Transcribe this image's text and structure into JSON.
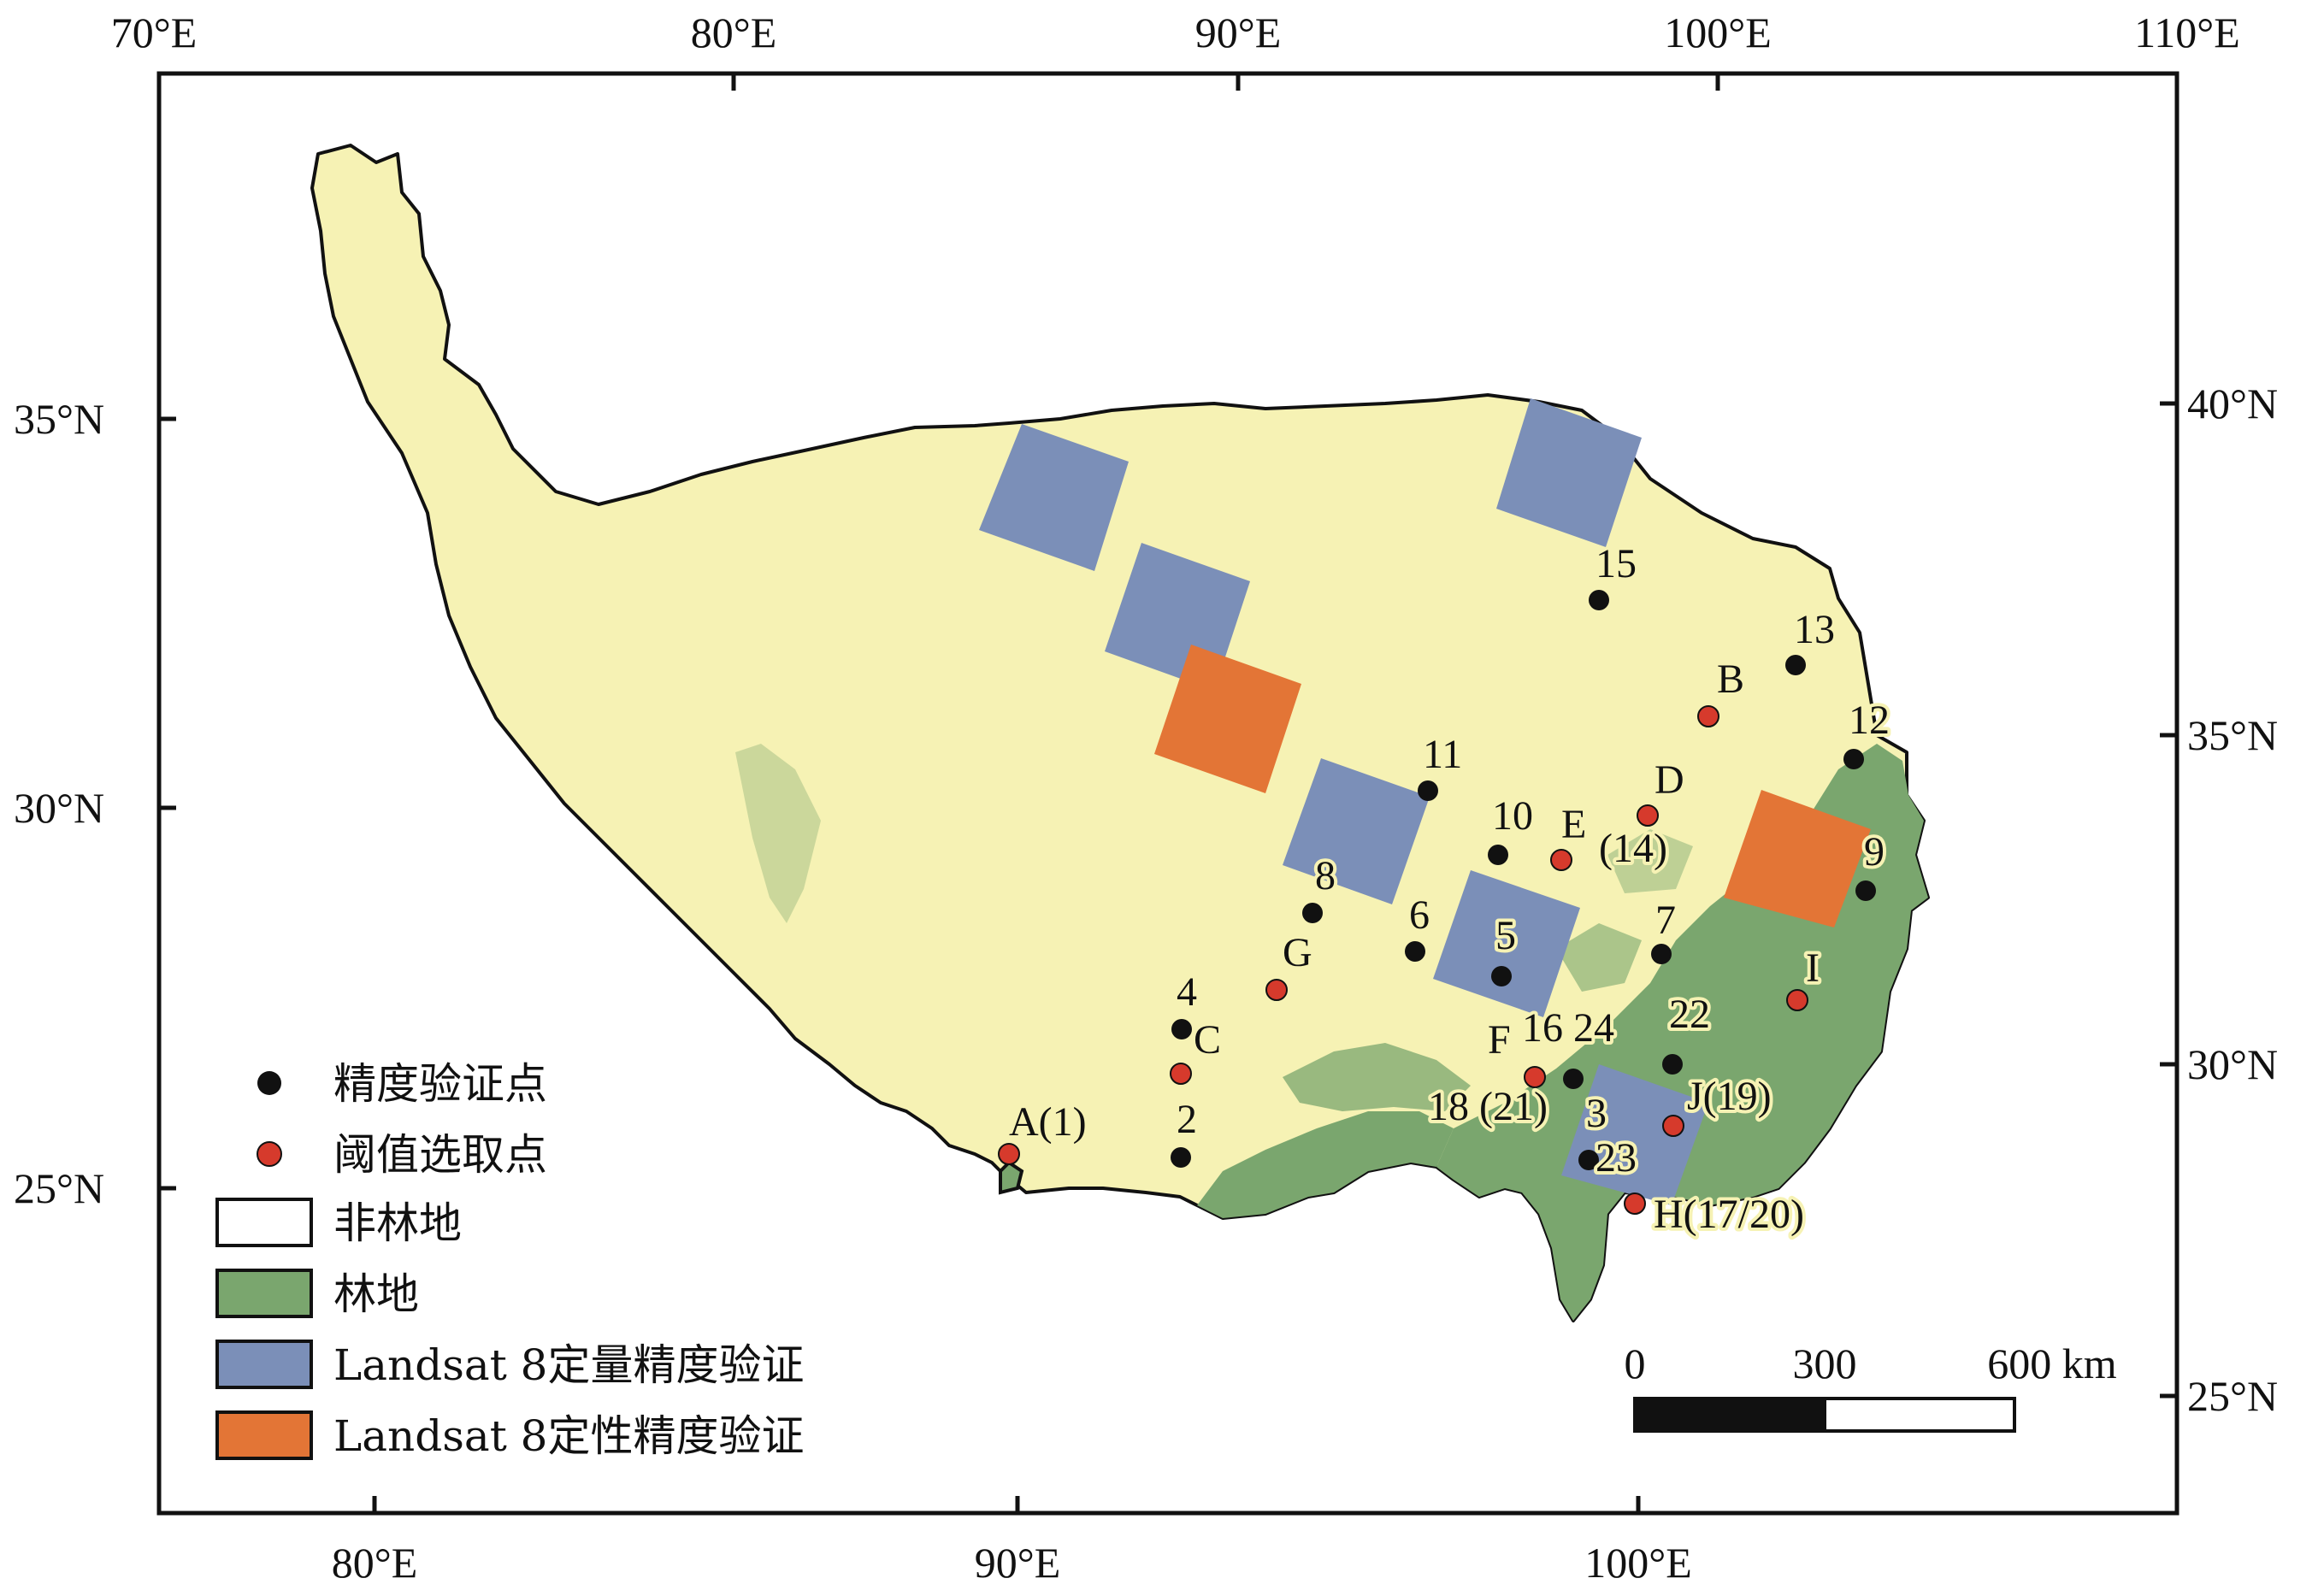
{
  "axes": {
    "top": [
      "70°E",
      "80°E",
      "90°E",
      "100°E",
      "110°E"
    ],
    "bottom": [
      "80°E",
      "90°E",
      "100°E"
    ],
    "left": [
      "35°N",
      "30°N",
      "25°N"
    ],
    "right": [
      "40°N",
      "35°N",
      "30°N",
      "25°N"
    ]
  },
  "colors": {
    "region": "#f6f2b4",
    "forest": "#7aa66e",
    "quantitative": "#7b8fb8",
    "qualitative": "#e37536",
    "accuracy_point": "#111111",
    "threshold_point": "#d63a2c"
  },
  "points": {
    "accuracy": [
      {
        "id": "p15",
        "label": "15"
      },
      {
        "id": "p13",
        "label": "13"
      },
      {
        "id": "p12",
        "label": "12"
      },
      {
        "id": "p11",
        "label": "11"
      },
      {
        "id": "p10",
        "label": "10"
      },
      {
        "id": "p9",
        "label": "9"
      },
      {
        "id": "p8",
        "label": "8"
      },
      {
        "id": "p7",
        "label": "7"
      },
      {
        "id": "p6",
        "label": "6"
      },
      {
        "id": "p5",
        "label": "5"
      },
      {
        "id": "p4",
        "label": "4"
      },
      {
        "id": "p2",
        "label": "2"
      },
      {
        "id": "p3",
        "label": "3"
      },
      {
        "id": "p22",
        "label": "22"
      },
      {
        "id": "p23",
        "label": "23"
      }
    ],
    "threshold": [
      {
        "id": "tB",
        "label": "B"
      },
      {
        "id": "tD",
        "label": "D"
      },
      {
        "id": "tE",
        "label": "E"
      },
      {
        "id": "tG",
        "label": "G"
      },
      {
        "id": "tC",
        "label": "C"
      },
      {
        "id": "tA",
        "label": "A(1)"
      },
      {
        "id": "tI",
        "label": "I"
      },
      {
        "id": "tF",
        "label": "F"
      },
      {
        "id": "tJ",
        "label": "J(19)"
      },
      {
        "id": "tH",
        "label": "H(17/20)"
      }
    ],
    "extra_labels": {
      "e14": "(14)",
      "p16_24": "16 24",
      "p18_21": "18 (21)"
    }
  },
  "legend": {
    "accuracy_point": "精度验证点",
    "threshold_point": "阈值选取点",
    "non_forest": "非林地",
    "forest": "林地",
    "landsat_quant": "Landsat 8定量精度验证",
    "landsat_qual": "Landsat 8定性精度验证"
  },
  "scale_bar": {
    "labels": [
      "0",
      "300",
      "600 km"
    ]
  }
}
